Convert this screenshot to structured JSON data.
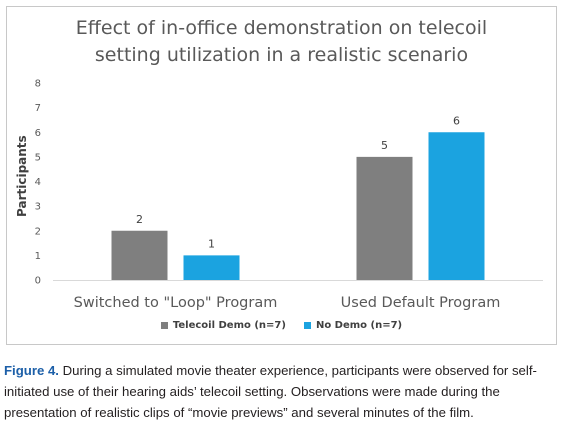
{
  "chart_data": {
    "type": "bar",
    "title_lines": [
      "Effect of in-office demonstration on telecoil",
      "setting utilization in a realistic scenario"
    ],
    "ylabel": "Participants",
    "xlabel": "",
    "ylim": [
      0,
      8
    ],
    "yticks": [
      0,
      1,
      2,
      3,
      4,
      5,
      6,
      7,
      8
    ],
    "ytick_labels": [
      "0",
      "1",
      "2",
      "3",
      "4",
      "5",
      "6",
      "7",
      "8"
    ],
    "categories": [
      "Switched to \"Loop\" Program",
      "Used Default Program"
    ],
    "series": [
      {
        "name": "Telecoil Demo (n=7)",
        "color": "#7f7f7f",
        "values": [
          2,
          5
        ]
      },
      {
        "name": "No Demo (n=7)",
        "color": "#1ba3e0",
        "values": [
          1,
          6
        ]
      }
    ],
    "data_labels": true,
    "grid": false,
    "legend": "bottom-center"
  },
  "caption": {
    "label": "Figure 4.",
    "text": " During a simulated movie theater experience, participants were observed for self-initiated use of their hearing aids’ telecoil setting. Observations were made during the presentation of realistic clips of “movie previews” and several minutes of the film."
  }
}
